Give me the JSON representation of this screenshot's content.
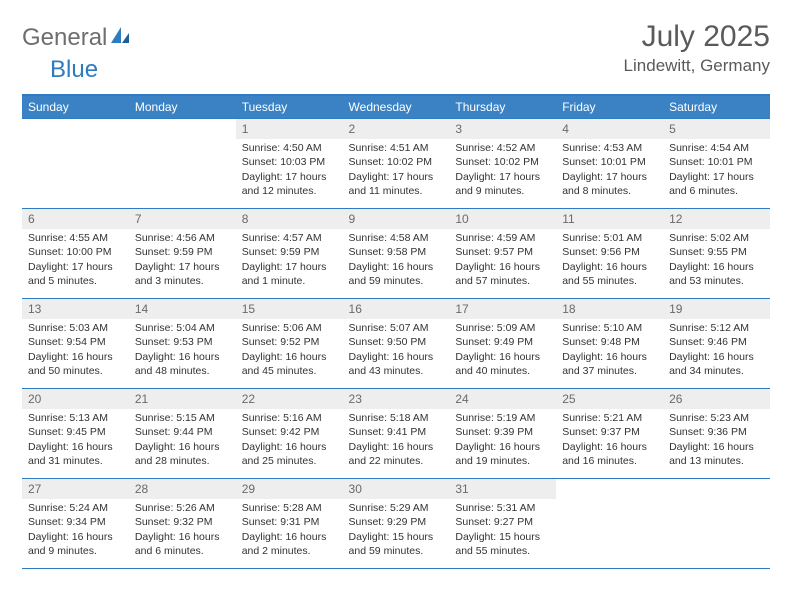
{
  "logo": {
    "word1": "General",
    "word2": "Blue"
  },
  "title": "July 2025",
  "location": "Lindewitt, Germany",
  "day_headers": [
    "Sunday",
    "Monday",
    "Tuesday",
    "Wednesday",
    "Thursday",
    "Friday",
    "Saturday"
  ],
  "colors": {
    "header_bg": "#3a82c4",
    "border": "#2f7bbf",
    "daynum_bg": "#eeeeee",
    "text": "#333333",
    "muted": "#6a6a6a",
    "logo_gray": "#6e6e6e",
    "logo_blue": "#2f7bbf"
  },
  "weeks": [
    [
      {
        "empty": true
      },
      {
        "empty": true
      },
      {
        "num": "1",
        "sunrise": "Sunrise: 4:50 AM",
        "sunset": "Sunset: 10:03 PM",
        "daylight": "Daylight: 17 hours and 12 minutes."
      },
      {
        "num": "2",
        "sunrise": "Sunrise: 4:51 AM",
        "sunset": "Sunset: 10:02 PM",
        "daylight": "Daylight: 17 hours and 11 minutes."
      },
      {
        "num": "3",
        "sunrise": "Sunrise: 4:52 AM",
        "sunset": "Sunset: 10:02 PM",
        "daylight": "Daylight: 17 hours and 9 minutes."
      },
      {
        "num": "4",
        "sunrise": "Sunrise: 4:53 AM",
        "sunset": "Sunset: 10:01 PM",
        "daylight": "Daylight: 17 hours and 8 minutes."
      },
      {
        "num": "5",
        "sunrise": "Sunrise: 4:54 AM",
        "sunset": "Sunset: 10:01 PM",
        "daylight": "Daylight: 17 hours and 6 minutes."
      }
    ],
    [
      {
        "num": "6",
        "sunrise": "Sunrise: 4:55 AM",
        "sunset": "Sunset: 10:00 PM",
        "daylight": "Daylight: 17 hours and 5 minutes."
      },
      {
        "num": "7",
        "sunrise": "Sunrise: 4:56 AM",
        "sunset": "Sunset: 9:59 PM",
        "daylight": "Daylight: 17 hours and 3 minutes."
      },
      {
        "num": "8",
        "sunrise": "Sunrise: 4:57 AM",
        "sunset": "Sunset: 9:59 PM",
        "daylight": "Daylight: 17 hours and 1 minute."
      },
      {
        "num": "9",
        "sunrise": "Sunrise: 4:58 AM",
        "sunset": "Sunset: 9:58 PM",
        "daylight": "Daylight: 16 hours and 59 minutes."
      },
      {
        "num": "10",
        "sunrise": "Sunrise: 4:59 AM",
        "sunset": "Sunset: 9:57 PM",
        "daylight": "Daylight: 16 hours and 57 minutes."
      },
      {
        "num": "11",
        "sunrise": "Sunrise: 5:01 AM",
        "sunset": "Sunset: 9:56 PM",
        "daylight": "Daylight: 16 hours and 55 minutes."
      },
      {
        "num": "12",
        "sunrise": "Sunrise: 5:02 AM",
        "sunset": "Sunset: 9:55 PM",
        "daylight": "Daylight: 16 hours and 53 minutes."
      }
    ],
    [
      {
        "num": "13",
        "sunrise": "Sunrise: 5:03 AM",
        "sunset": "Sunset: 9:54 PM",
        "daylight": "Daylight: 16 hours and 50 minutes."
      },
      {
        "num": "14",
        "sunrise": "Sunrise: 5:04 AM",
        "sunset": "Sunset: 9:53 PM",
        "daylight": "Daylight: 16 hours and 48 minutes."
      },
      {
        "num": "15",
        "sunrise": "Sunrise: 5:06 AM",
        "sunset": "Sunset: 9:52 PM",
        "daylight": "Daylight: 16 hours and 45 minutes."
      },
      {
        "num": "16",
        "sunrise": "Sunrise: 5:07 AM",
        "sunset": "Sunset: 9:50 PM",
        "daylight": "Daylight: 16 hours and 43 minutes."
      },
      {
        "num": "17",
        "sunrise": "Sunrise: 5:09 AM",
        "sunset": "Sunset: 9:49 PM",
        "daylight": "Daylight: 16 hours and 40 minutes."
      },
      {
        "num": "18",
        "sunrise": "Sunrise: 5:10 AM",
        "sunset": "Sunset: 9:48 PM",
        "daylight": "Daylight: 16 hours and 37 minutes."
      },
      {
        "num": "19",
        "sunrise": "Sunrise: 5:12 AM",
        "sunset": "Sunset: 9:46 PM",
        "daylight": "Daylight: 16 hours and 34 minutes."
      }
    ],
    [
      {
        "num": "20",
        "sunrise": "Sunrise: 5:13 AM",
        "sunset": "Sunset: 9:45 PM",
        "daylight": "Daylight: 16 hours and 31 minutes."
      },
      {
        "num": "21",
        "sunrise": "Sunrise: 5:15 AM",
        "sunset": "Sunset: 9:44 PM",
        "daylight": "Daylight: 16 hours and 28 minutes."
      },
      {
        "num": "22",
        "sunrise": "Sunrise: 5:16 AM",
        "sunset": "Sunset: 9:42 PM",
        "daylight": "Daylight: 16 hours and 25 minutes."
      },
      {
        "num": "23",
        "sunrise": "Sunrise: 5:18 AM",
        "sunset": "Sunset: 9:41 PM",
        "daylight": "Daylight: 16 hours and 22 minutes."
      },
      {
        "num": "24",
        "sunrise": "Sunrise: 5:19 AM",
        "sunset": "Sunset: 9:39 PM",
        "daylight": "Daylight: 16 hours and 19 minutes."
      },
      {
        "num": "25",
        "sunrise": "Sunrise: 5:21 AM",
        "sunset": "Sunset: 9:37 PM",
        "daylight": "Daylight: 16 hours and 16 minutes."
      },
      {
        "num": "26",
        "sunrise": "Sunrise: 5:23 AM",
        "sunset": "Sunset: 9:36 PM",
        "daylight": "Daylight: 16 hours and 13 minutes."
      }
    ],
    [
      {
        "num": "27",
        "sunrise": "Sunrise: 5:24 AM",
        "sunset": "Sunset: 9:34 PM",
        "daylight": "Daylight: 16 hours and 9 minutes."
      },
      {
        "num": "28",
        "sunrise": "Sunrise: 5:26 AM",
        "sunset": "Sunset: 9:32 PM",
        "daylight": "Daylight: 16 hours and 6 minutes."
      },
      {
        "num": "29",
        "sunrise": "Sunrise: 5:28 AM",
        "sunset": "Sunset: 9:31 PM",
        "daylight": "Daylight: 16 hours and 2 minutes."
      },
      {
        "num": "30",
        "sunrise": "Sunrise: 5:29 AM",
        "sunset": "Sunset: 9:29 PM",
        "daylight": "Daylight: 15 hours and 59 minutes."
      },
      {
        "num": "31",
        "sunrise": "Sunrise: 5:31 AM",
        "sunset": "Sunset: 9:27 PM",
        "daylight": "Daylight: 15 hours and 55 minutes."
      },
      {
        "empty": true
      },
      {
        "empty": true
      }
    ]
  ]
}
